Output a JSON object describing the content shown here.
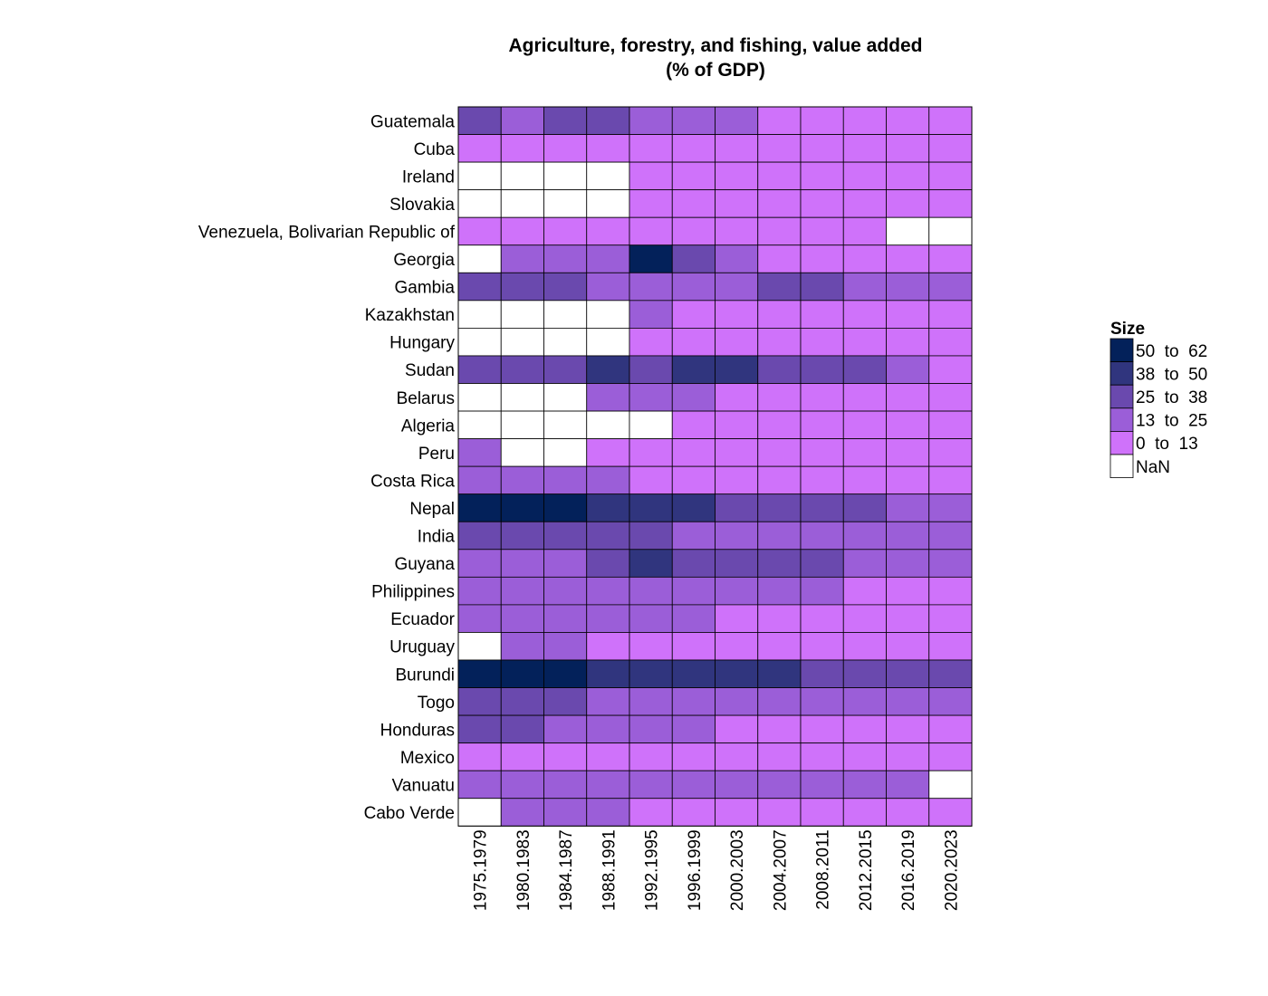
{
  "chart_data": {
    "type": "heatmap",
    "title_lines": [
      "Agriculture, forestry, and fishing, value added",
      "(% of GDP)"
    ],
    "columns": [
      "1975.1979",
      "1980.1983",
      "1984.1987",
      "1988.1991",
      "1992.1995",
      "1996.1999",
      "2000.2003",
      "2004.2007",
      "2008.2011",
      "2012.2015",
      "2016.2019",
      "2020.2023"
    ],
    "rows": [
      "Guatemala",
      "Cuba",
      "Ireland",
      "Slovakia",
      "Venezuela, Bolivarian Republic of",
      "Georgia",
      "Gambia",
      "Kazakhstan",
      "Hungary",
      "Sudan",
      "Belarus",
      "Algeria",
      "Peru",
      "Costa Rica",
      "Nepal",
      "India",
      "Guyana",
      "Philippines",
      "Ecuador",
      "Uruguay",
      "Burundi",
      "Togo",
      "Honduras",
      "Mexico",
      "Vanuatu",
      "Cabo Verde"
    ],
    "bin_matrix": [
      [
        2,
        1,
        2,
        2,
        1,
        1,
        1,
        0,
        0,
        0,
        0,
        0
      ],
      [
        0,
        0,
        0,
        0,
        0,
        0,
        0,
        0,
        0,
        0,
        0,
        0
      ],
      [
        null,
        null,
        null,
        null,
        0,
        0,
        0,
        0,
        0,
        0,
        0,
        0
      ],
      [
        null,
        null,
        null,
        null,
        0,
        0,
        0,
        0,
        0,
        0,
        0,
        0
      ],
      [
        0,
        0,
        0,
        0,
        0,
        0,
        0,
        0,
        0,
        0,
        null,
        null
      ],
      [
        null,
        1,
        1,
        1,
        4,
        2,
        1,
        0,
        0,
        0,
        0,
        0
      ],
      [
        2,
        2,
        2,
        1,
        1,
        1,
        1,
        2,
        2,
        1,
        1,
        1
      ],
      [
        null,
        null,
        null,
        null,
        1,
        0,
        0,
        0,
        0,
        0,
        0,
        0
      ],
      [
        null,
        null,
        null,
        null,
        0,
        0,
        0,
        0,
        0,
        0,
        0,
        0
      ],
      [
        2,
        2,
        2,
        3,
        2,
        3,
        3,
        2,
        2,
        2,
        1,
        0
      ],
      [
        null,
        null,
        null,
        1,
        1,
        1,
        0,
        0,
        0,
        0,
        0,
        0
      ],
      [
        null,
        null,
        null,
        null,
        null,
        0,
        0,
        0,
        0,
        0,
        0,
        0
      ],
      [
        1,
        null,
        null,
        0,
        0,
        0,
        0,
        0,
        0,
        0,
        0,
        0
      ],
      [
        1,
        1,
        1,
        1,
        0,
        0,
        0,
        0,
        0,
        0,
        0,
        0
      ],
      [
        4,
        4,
        4,
        3,
        3,
        3,
        2,
        2,
        2,
        2,
        1,
        1
      ],
      [
        2,
        2,
        2,
        2,
        2,
        1,
        1,
        1,
        1,
        1,
        1,
        1
      ],
      [
        1,
        1,
        1,
        2,
        3,
        2,
        2,
        2,
        2,
        1,
        1,
        1
      ],
      [
        1,
        1,
        1,
        1,
        1,
        1,
        1,
        1,
        1,
        0,
        0,
        0
      ],
      [
        1,
        1,
        1,
        1,
        1,
        1,
        0,
        0,
        0,
        0,
        0,
        0
      ],
      [
        null,
        1,
        1,
        0,
        0,
        0,
        0,
        0,
        0,
        0,
        0,
        0
      ],
      [
        4,
        4,
        4,
        3,
        3,
        3,
        3,
        3,
        2,
        2,
        2,
        2
      ],
      [
        2,
        2,
        2,
        1,
        1,
        1,
        1,
        1,
        1,
        1,
        1,
        1
      ],
      [
        2,
        2,
        1,
        1,
        1,
        1,
        0,
        0,
        0,
        0,
        0,
        0
      ],
      [
        0,
        0,
        0,
        0,
        0,
        0,
        0,
        0,
        0,
        0,
        0,
        0
      ],
      [
        1,
        1,
        1,
        1,
        1,
        1,
        1,
        1,
        1,
        1,
        1,
        null
      ],
      [
        null,
        1,
        1,
        1,
        0,
        0,
        0,
        0,
        0,
        0,
        0,
        0
      ]
    ],
    "bins": [
      {
        "label": "0  to  13",
        "min": 0,
        "max": 13,
        "color": "#cf72fa"
      },
      {
        "label": "13  to  25",
        "min": 13,
        "max": 25,
        "color": "#9b5ed8"
      },
      {
        "label": "25  to  38",
        "min": 25,
        "max": 38,
        "color": "#6a49ae"
      },
      {
        "label": "38  to  50",
        "min": 38,
        "max": 50,
        "color": "#30357e"
      },
      {
        "label": "50  to  62",
        "min": 50,
        "max": 62,
        "color": "#03215a"
      }
    ],
    "nan": {
      "label": "NaN",
      "color": "#ffffff"
    },
    "legend": {
      "title": "Size",
      "position": "right"
    }
  }
}
